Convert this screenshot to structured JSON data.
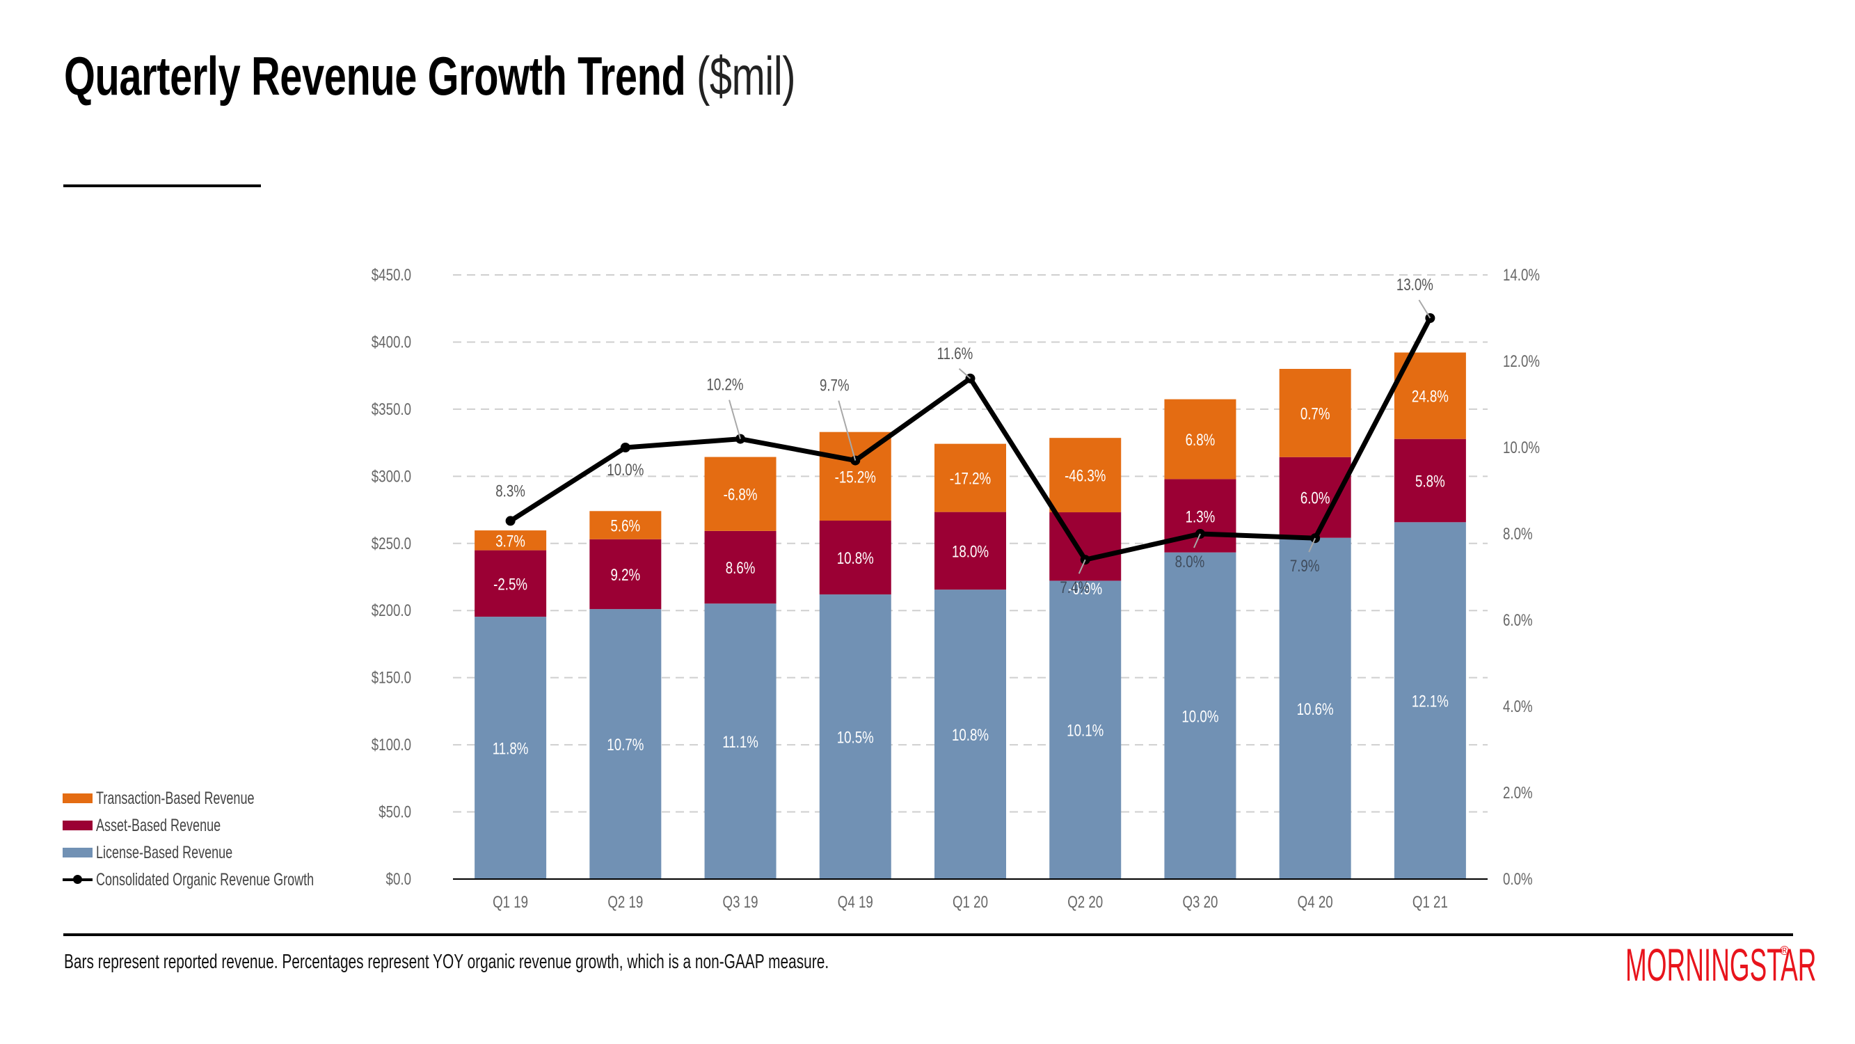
{
  "header": {
    "title_bold": "Quarterly Revenue Growth Trend",
    "title_light": "($mil)"
  },
  "legend": {
    "items": [
      {
        "label": "Transaction-Based Revenue",
        "type": "bar",
        "color": "#E46C12"
      },
      {
        "label": "Asset-Based Revenue",
        "type": "bar",
        "color": "#9B0034"
      },
      {
        "label": "License-Based Revenue",
        "type": "bar",
        "color": "#7191B4"
      },
      {
        "label": "Consolidated Organic Revenue Growth",
        "type": "line",
        "color": "#000000"
      }
    ]
  },
  "footer": {
    "note": "Bars represent reported revenue. Percentages represent YOY organic revenue growth, which is a non-GAAP measure.",
    "logo": "MORNINGSTAR",
    "logo_reg": "®",
    "logo_color": "#E8141C"
  },
  "chart_data": {
    "type": "bar",
    "stacked": true,
    "title": "Quarterly Revenue Growth Trend ($mil)",
    "xlabel": "",
    "ylabel": "",
    "y2label": "",
    "categories": [
      "Q1 19",
      "Q2 19",
      "Q3 19",
      "Q4 19",
      "Q1 20",
      "Q2 20",
      "Q3 20",
      "Q4 20",
      "Q1 21"
    ],
    "ylim": [
      0,
      450
    ],
    "y_ticks": [
      0,
      50,
      100,
      150,
      200,
      250,
      300,
      350,
      400,
      450
    ],
    "y_tick_labels": [
      "$0.0",
      "$50.0",
      "$100.0",
      "$150.0",
      "$200.0",
      "$250.0",
      "$300.0",
      "$350.0",
      "$400.0",
      "$450.0"
    ],
    "y2lim": [
      0,
      14
    ],
    "y2_ticks": [
      0,
      2,
      4,
      6,
      8,
      10,
      12,
      14
    ],
    "y2_tick_labels": [
      "0.0%",
      "2.0%",
      "4.0%",
      "6.0%",
      "8.0%",
      "10.0%",
      "12.0%",
      "14.0%"
    ],
    "grid": true,
    "legend_position": "left",
    "series": [
      {
        "name": "License-Based Revenue",
        "color": "#7191B4",
        "values": [
          195.4,
          201.1,
          205.2,
          212.0,
          215.6,
          222.2,
          243.3,
          254.2,
          265.8
        ],
        "growth_labels": [
          "11.8%",
          "10.7%",
          "11.1%",
          "10.5%",
          "10.8%",
          "10.1%",
          "10.0%",
          "10.6%",
          "12.1%"
        ]
      },
      {
        "name": "Asset-Based Revenue",
        "color": "#9B0034",
        "values": [
          49.5,
          52.0,
          54.1,
          55.0,
          57.8,
          51.0,
          54.6,
          60.1,
          62.0
        ],
        "growth_labels": [
          "-2.5%",
          "9.2%",
          "8.6%",
          "10.8%",
          "18.0%",
          "-0.9%",
          "1.3%",
          "6.0%",
          "5.8%"
        ]
      },
      {
        "name": "Transaction-Based Revenue",
        "color": "#E46C12",
        "values": [
          14.8,
          21.0,
          55.1,
          66.0,
          50.8,
          55.4,
          59.5,
          65.7,
          64.4
        ],
        "growth_labels": [
          "3.7%",
          "5.6%",
          "-6.8%",
          "-15.2%",
          "-17.2%",
          "-46.3%",
          "6.8%",
          "0.7%",
          "24.8%"
        ]
      }
    ],
    "line_series": {
      "name": "Consolidated Organic Revenue Growth",
      "axis": "right",
      "color": "#000000",
      "values": [
        8.3,
        10.0,
        10.2,
        9.7,
        11.6,
        7.4,
        8.0,
        7.9,
        13.0
      ],
      "labels": [
        "8.3%",
        "10.0%",
        "10.2%",
        "9.7%",
        "11.6%",
        "7.4%",
        "8.0%",
        "7.9%",
        "13.0%"
      ]
    }
  }
}
